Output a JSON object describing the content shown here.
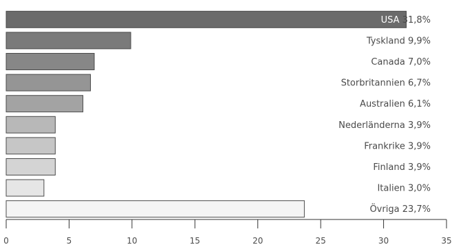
{
  "chart_data": {
    "type": "bar",
    "orientation": "horizontal",
    "categories": [
      "USA",
      "Tyskland",
      "Canada",
      "Storbritannien",
      "Australien",
      "Nederländerna",
      "Frankrike",
      "Finland",
      "Italien",
      "Övriga"
    ],
    "values": [
      31.8,
      9.9,
      7.0,
      6.7,
      6.1,
      3.9,
      3.9,
      3.9,
      3.0,
      23.7
    ],
    "value_labels": [
      "31,8%",
      "9,9%",
      "7,0%",
      "6,7%",
      "6,1%",
      "3,9%",
      "3,9%",
      "3,9%",
      "3,0%",
      "23,7%"
    ],
    "bar_colors": [
      "#6b6b6b",
      "#7a7a7a",
      "#878787",
      "#959595",
      "#a3a3a3",
      "#b8b8b8",
      "#c6c6c6",
      "#d4d4d4",
      "#e6e6e6",
      "#f5f5f5"
    ],
    "x_ticks": [
      "0",
      "5",
      "10",
      "15",
      "20",
      "25",
      "30",
      "35"
    ],
    "xlim": [
      0,
      35
    ],
    "grid": false,
    "legend": "none"
  }
}
